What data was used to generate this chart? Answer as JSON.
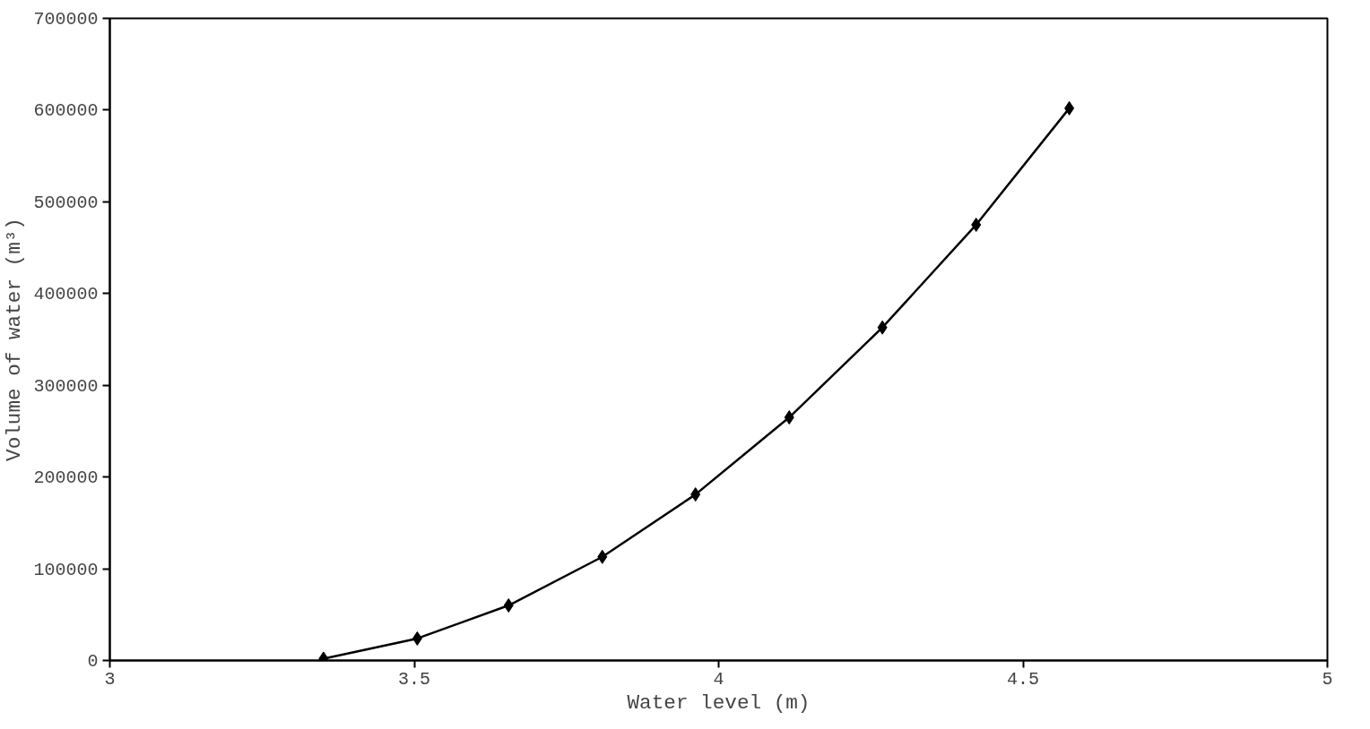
{
  "chart_data": {
    "type": "line",
    "xlabel": "Water level (m)",
    "ylabel": "Volume of water (m³)",
    "x": [
      3.351,
      3.505,
      3.655,
      3.809,
      3.962,
      4.116,
      4.269,
      4.423,
      4.576
    ],
    "series": [
      {
        "color": "#000000",
        "values": [
          2000,
          24000,
          60000,
          113000,
          181000,
          265000,
          363000,
          475000,
          602000
        ]
      }
    ],
    "xlim": [
      3,
      5
    ],
    "xticks": [
      3,
      3.5,
      4,
      4.5,
      5
    ],
    "ylim": [
      0,
      700000
    ],
    "yticks": [
      0,
      100000,
      200000,
      300000,
      400000,
      500000,
      600000,
      700000
    ],
    "grid": false,
    "marker": "diamond",
    "line_style": "solid"
  }
}
